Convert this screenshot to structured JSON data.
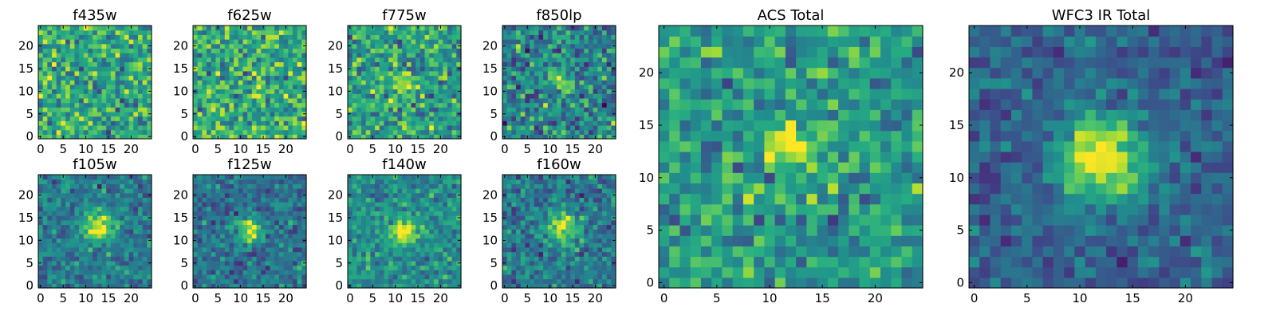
{
  "chart_data": [
    {
      "type": "heatmap",
      "title": "f435w",
      "xticks": [
        "0",
        "5",
        "10",
        "15",
        "20"
      ],
      "yticks": [
        "0",
        "5",
        "10",
        "15",
        "20"
      ],
      "xlim": [
        0,
        25
      ],
      "ylim": [
        0,
        25
      ],
      "colormap": "viridis",
      "source_peak": null
    },
    {
      "type": "heatmap",
      "title": "f625w",
      "xticks": [
        "0",
        "5",
        "10",
        "15",
        "20"
      ],
      "yticks": [
        "0",
        "5",
        "10",
        "15",
        "20"
      ],
      "xlim": [
        0,
        25
      ],
      "ylim": [
        0,
        25
      ],
      "colormap": "viridis",
      "source_peak": null
    },
    {
      "type": "heatmap",
      "title": "f775w",
      "xticks": [
        "0",
        "5",
        "10",
        "15",
        "20"
      ],
      "yticks": [
        "0",
        "5",
        "10",
        "15",
        "20"
      ],
      "xlim": [
        0,
        25
      ],
      "ylim": [
        0,
        25
      ],
      "colormap": "viridis",
      "source_peak": [
        12,
        12
      ]
    },
    {
      "type": "heatmap",
      "title": "f850lp",
      "xticks": [
        "0",
        "5",
        "10",
        "15",
        "20"
      ],
      "yticks": [
        "0",
        "5",
        "10",
        "15",
        "20"
      ],
      "xlim": [
        0,
        25
      ],
      "ylim": [
        0,
        25
      ],
      "colormap": "viridis",
      "source_peak": [
        12,
        12
      ]
    },
    {
      "type": "heatmap",
      "title": "f105w",
      "xticks": [
        "0",
        "5",
        "10",
        "15",
        "20"
      ],
      "yticks": [
        "0",
        "5",
        "10",
        "15",
        "20"
      ],
      "xlim": [
        0,
        25
      ],
      "ylim": [
        0,
        25
      ],
      "colormap": "viridis",
      "source_peak": [
        13,
        13
      ]
    },
    {
      "type": "heatmap",
      "title": "f125w",
      "xticks": [
        "0",
        "5",
        "10",
        "15",
        "20"
      ],
      "yticks": [
        "0",
        "5",
        "10",
        "15",
        "20"
      ],
      "xlim": [
        0,
        25
      ],
      "ylim": [
        0,
        25
      ],
      "colormap": "viridis",
      "source_peak": [
        12,
        12
      ]
    },
    {
      "type": "heatmap",
      "title": "f140w",
      "xticks": [
        "0",
        "5",
        "10",
        "15",
        "20"
      ],
      "yticks": [
        "0",
        "5",
        "10",
        "15",
        "20"
      ],
      "xlim": [
        0,
        25
      ],
      "ylim": [
        0,
        25
      ],
      "colormap": "viridis",
      "source_peak": [
        12,
        12
      ]
    },
    {
      "type": "heatmap",
      "title": "f160w",
      "xticks": [
        "0",
        "5",
        "10",
        "15",
        "20"
      ],
      "yticks": [
        "0",
        "5",
        "10",
        "15",
        "20"
      ],
      "xlim": [
        0,
        25
      ],
      "ylim": [
        0,
        25
      ],
      "colormap": "viridis",
      "source_peak": [
        13,
        13
      ]
    },
    {
      "type": "heatmap",
      "title": "ACS Total",
      "xticks": [
        "0",
        "5",
        "10",
        "15",
        "20"
      ],
      "yticks": [
        "0",
        "5",
        "10",
        "15",
        "20"
      ],
      "xlim": [
        0,
        25
      ],
      "ylim": [
        0,
        25
      ],
      "colormap": "viridis",
      "source_peak": [
        12,
        13
      ]
    },
    {
      "type": "heatmap",
      "title": "WFC3 IR Total",
      "xticks": [
        "0",
        "5",
        "10",
        "15",
        "20"
      ],
      "yticks": [
        "0",
        "5",
        "10",
        "15",
        "20"
      ],
      "xlim": [
        0,
        25
      ],
      "ylim": [
        0,
        25
      ],
      "colormap": "viridis",
      "source_peak": [
        12,
        12
      ]
    }
  ]
}
